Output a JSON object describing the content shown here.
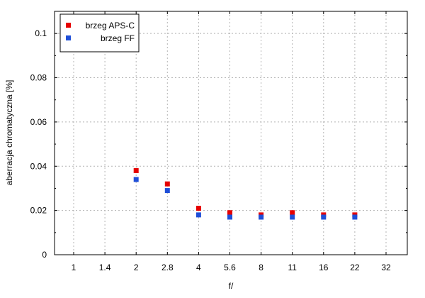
{
  "chart_data": {
    "type": "scatter",
    "xlabel": "f/",
    "ylabel": "aberracja chromatyczna [%]",
    "categories": [
      "1",
      "1.4",
      "2",
      "2.8",
      "4",
      "5.6",
      "8",
      "11",
      "16",
      "22",
      "32"
    ],
    "ylim": [
      0,
      0.11
    ],
    "yticks": [
      0,
      0.02,
      0.04,
      0.06,
      0.08,
      0.1
    ],
    "ytick_labels": [
      "0",
      "0.02",
      "0.04",
      "0.06",
      "0.08",
      "0.1"
    ],
    "grid": true,
    "legend_position": "top-left",
    "series": [
      {
        "name": "brzeg APS-C",
        "color": "#e60000",
        "x": [
          "2",
          "2.8",
          "4",
          "5.6",
          "8",
          "11",
          "16",
          "22"
        ],
        "values": [
          0.038,
          0.032,
          0.021,
          0.019,
          0.018,
          0.019,
          0.018,
          0.018
        ]
      },
      {
        "name": "brzeg FF",
        "color": "#1f4fd8",
        "x": [
          "2",
          "2.8",
          "4",
          "5.6",
          "8",
          "11",
          "16",
          "22"
        ],
        "values": [
          0.034,
          0.029,
          0.018,
          0.017,
          0.017,
          0.017,
          0.017,
          0.017
        ]
      }
    ]
  }
}
